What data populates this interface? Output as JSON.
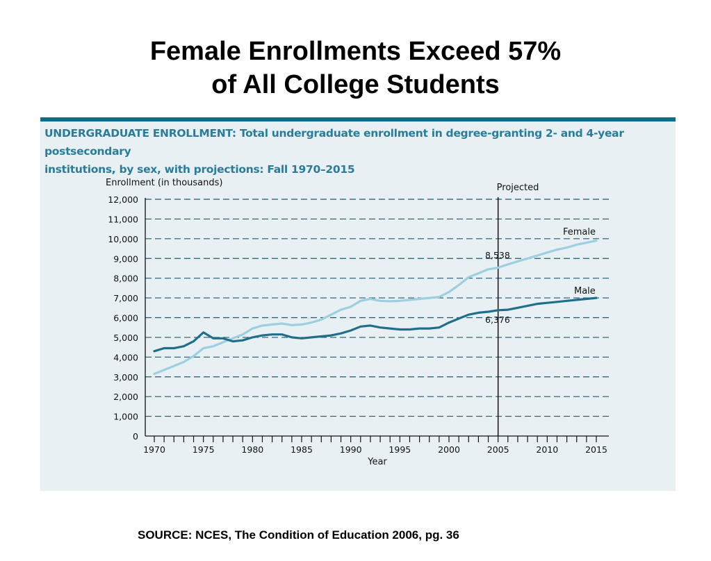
{
  "slide": {
    "title_line1": "Female Enrollments Exceed 57%",
    "title_line2": "of All College Students",
    "source": "SOURCE: NCES, The Condition of Education 2006, pg. 36"
  },
  "panel": {
    "heading_bold": "UNDERGRADUATE ENROLLMENT:",
    "heading_rest_line1": " Total undergraduate enrollment in degree-granting 2- and 4-year postsecondary",
    "heading_line2": "institutions, by sex, with projections: Fall 1970–2015"
  },
  "colors": {
    "female": "#9ccfdf",
    "male": "#1f6f8b",
    "panel_bg": "#e8f0f3",
    "panel_rule": "#0e6d8c",
    "grid": "#1a5a78"
  },
  "chart_data": {
    "type": "line",
    "ylabel": "Enrollment (in thousands)",
    "xlabel": "Year",
    "ylim": [
      0,
      12000
    ],
    "xlim": [
      1970,
      2015
    ],
    "yticks": [
      0,
      1000,
      2000,
      3000,
      4000,
      5000,
      6000,
      7000,
      8000,
      9000,
      10000,
      11000,
      12000
    ],
    "ytick_labels": [
      "0",
      "1,000",
      "2,000",
      "3,000",
      "4,000",
      "5,000",
      "6,000",
      "7,000",
      "8,000",
      "9,000",
      "10,000",
      "11,000",
      "12,000"
    ],
    "xticks_labeled": [
      1970,
      1975,
      1980,
      1985,
      1990,
      1995,
      2000,
      2005,
      2010,
      2015
    ],
    "grid": "horizontal dashed",
    "projection_line": {
      "x": 2005,
      "label": "Projected"
    },
    "annotations": [
      {
        "text": "8,538",
        "series": "Female",
        "x": 2005,
        "y": 8538
      },
      {
        "text": "6,376",
        "series": "Male",
        "x": 2005,
        "y": 6376
      }
    ],
    "x": [
      1970,
      1971,
      1972,
      1973,
      1974,
      1975,
      1976,
      1977,
      1978,
      1979,
      1980,
      1981,
      1982,
      1983,
      1984,
      1985,
      1986,
      1987,
      1988,
      1989,
      1990,
      1991,
      1992,
      1993,
      1994,
      1995,
      1996,
      1997,
      1998,
      1999,
      2000,
      2001,
      2002,
      2003,
      2004,
      2005,
      2006,
      2007,
      2008,
      2009,
      2010,
      2011,
      2012,
      2013,
      2014,
      2015
    ],
    "series": [
      {
        "name": "Female",
        "values": [
          3150,
          3350,
          3550,
          3750,
          4050,
          4450,
          4550,
          4750,
          4950,
          5150,
          5450,
          5600,
          5650,
          5700,
          5620,
          5650,
          5750,
          5900,
          6150,
          6400,
          6550,
          6850,
          6950,
          6850,
          6830,
          6850,
          6900,
          6950,
          7000,
          7050,
          7300,
          7650,
          8050,
          8250,
          8450,
          8538,
          8700,
          8850,
          9000,
          9150,
          9300,
          9450,
          9550,
          9700,
          9800,
          9900
        ]
      },
      {
        "name": "Male",
        "values": [
          4300,
          4450,
          4450,
          4550,
          4800,
          5250,
          4950,
          4950,
          4800,
          4850,
          5000,
          5100,
          5150,
          5150,
          5000,
          4950,
          5000,
          5050,
          5100,
          5200,
          5350,
          5550,
          5600,
          5500,
          5450,
          5400,
          5400,
          5450,
          5450,
          5500,
          5750,
          5950,
          6150,
          6250,
          6300,
          6376,
          6400,
          6500,
          6600,
          6700,
          6750,
          6800,
          6850,
          6900,
          6950,
          7000
        ]
      }
    ]
  }
}
